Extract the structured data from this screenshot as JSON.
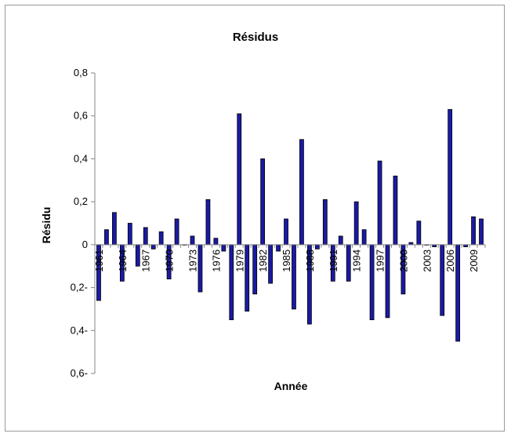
{
  "chart_data": {
    "type": "bar",
    "title": "Résidus",
    "xlabel": "Année",
    "ylabel": "Résidu",
    "ylim": [
      -0.6,
      0.8
    ],
    "y_ticks": [
      "0,8",
      "0,6",
      "0,4",
      "0,2",
      "0",
      "0,2-",
      "0,4-",
      "0,6-"
    ],
    "x_tick_labels": [
      "1961",
      "1964",
      "1967",
      "1970",
      "1973",
      "1976",
      "1979",
      "1982",
      "1985",
      "1988",
      "1991",
      "1994",
      "1997",
      "2000",
      "2003",
      "2006",
      "2009"
    ],
    "grid": false,
    "legend": "none",
    "bar_color": "#1a1aa6",
    "categories": [
      "1961",
      "1962",
      "1963",
      "1964",
      "1965",
      "1966",
      "1967",
      "1968",
      "1969",
      "1970",
      "1971",
      "1972",
      "1973",
      "1974",
      "1975",
      "1976",
      "1977",
      "1978",
      "1979",
      "1980",
      "1981",
      "1982",
      "1983",
      "1984",
      "1985",
      "1986",
      "1987",
      "1988",
      "1989",
      "1990",
      "1991",
      "1992",
      "1993",
      "1994",
      "1995",
      "1996",
      "1997",
      "1998",
      "1999",
      "2000",
      "2001",
      "2002",
      "2003",
      "2004",
      "2005",
      "2006",
      "2007",
      "2008",
      "2009",
      "2010"
    ],
    "values": [
      -0.26,
      0.07,
      0.15,
      -0.17,
      0.1,
      -0.1,
      0.08,
      -0.02,
      0.06,
      -0.16,
      0.12,
      0.0,
      0.04,
      -0.22,
      0.21,
      0.03,
      -0.03,
      -0.35,
      0.61,
      -0.31,
      -0.23,
      0.4,
      -0.18,
      -0.03,
      0.12,
      -0.3,
      0.49,
      -0.37,
      -0.02,
      0.21,
      -0.17,
      0.04,
      -0.17,
      0.2,
      0.07,
      -0.35,
      0.39,
      -0.34,
      0.32,
      -0.23,
      0.01,
      0.11,
      0.0,
      -0.01,
      -0.33,
      0.63,
      -0.45,
      -0.01,
      0.13,
      0.12
    ]
  }
}
